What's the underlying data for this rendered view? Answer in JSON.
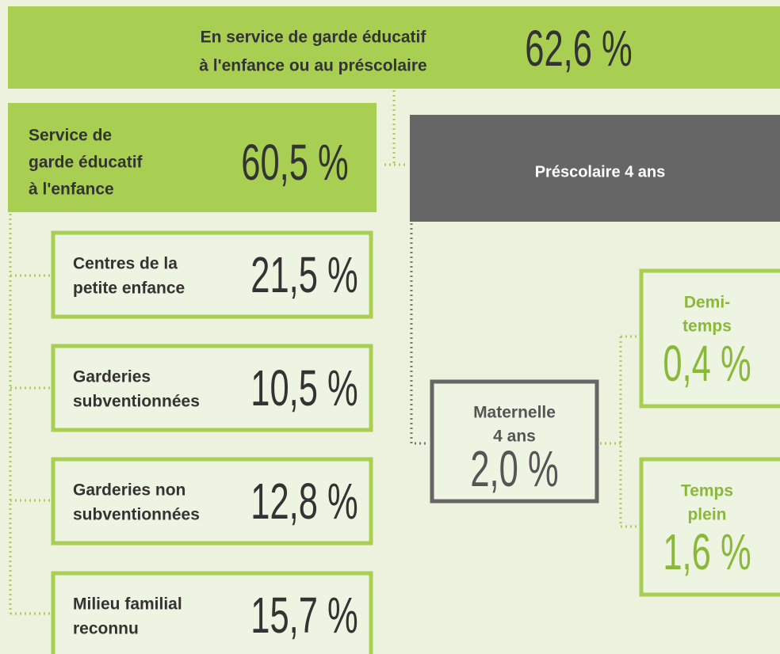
{
  "header": {
    "label_lines": [
      "En service de garde éducatif",
      "à l'enfance ou au préscolaire"
    ],
    "value": "62,6 %"
  },
  "service": {
    "label_lines": [
      "Service de",
      "garde éducatif",
      "à l'enfance"
    ],
    "value": "60,5 %"
  },
  "prescolaire": {
    "label": "Préscolaire 4 ans"
  },
  "service_nodes": [
    {
      "label_lines": [
        "Centres de la",
        "petite enfance"
      ],
      "value": "21,5 %"
    },
    {
      "label_lines": [
        "Garderies",
        "subventionnées"
      ],
      "value": "10,5 %"
    },
    {
      "label_lines": [
        "Garderies non",
        "subventionnées"
      ],
      "value": "12,8 %"
    },
    {
      "label_lines": [
        "Milieu familial",
        "reconnu"
      ],
      "value": "15,7 %"
    }
  ],
  "maternelle": {
    "label_lines": [
      "Maternelle",
      "4 ans"
    ],
    "value": "2,0 %"
  },
  "maternelle_nodes": [
    {
      "label_lines": [
        "Demi-",
        "temps"
      ],
      "value": "0,4 %"
    },
    {
      "label_lines": [
        "Temps",
        "plein"
      ],
      "value": "1,6 %"
    }
  ]
}
